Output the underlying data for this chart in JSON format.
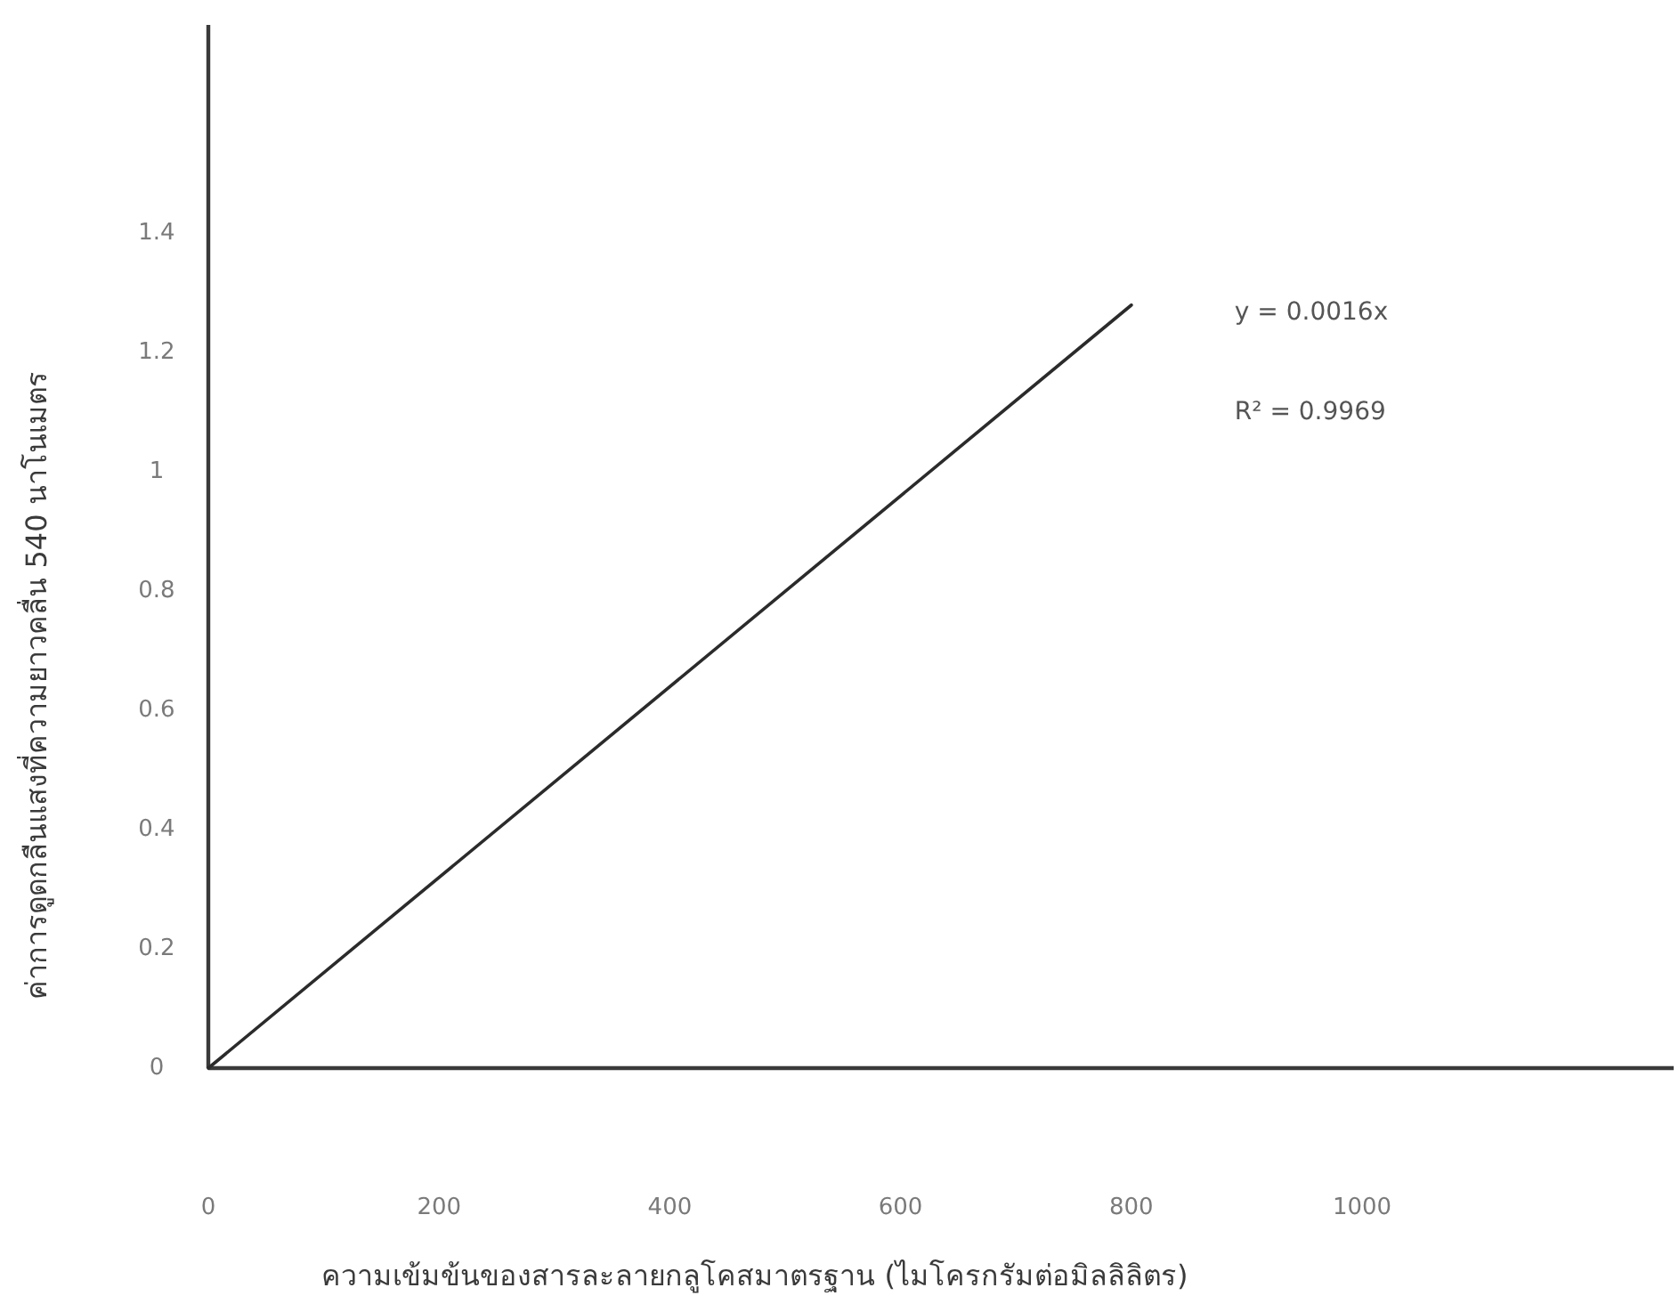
{
  "chart_data": {
    "type": "line",
    "xlabel": "ความเข้มข้นของสารละลายกลูโคสมาตรฐาน (ไมโครกรัมต่อมิลลิลิตร)",
    "ylabel": "ค่าการดูดกลืนแสงที่ความยาวคลื่น 540 นาโนเมตร",
    "x": [
      0,
      800
    ],
    "series": [
      {
        "color": "#2b2b2b",
        "values": [
          0,
          1.28
        ]
      }
    ],
    "xlim": [
      0,
      1270
    ],
    "ylim": [
      0,
      1.75
    ],
    "xticks": [
      0,
      200,
      400,
      600,
      800,
      1000
    ],
    "yticks": [
      0,
      0.2,
      0.4,
      0.6,
      0.8,
      1,
      1.2,
      1.4
    ],
    "annotations": [
      "y = 0.0016x",
      "R² = 0.9969"
    ]
  }
}
